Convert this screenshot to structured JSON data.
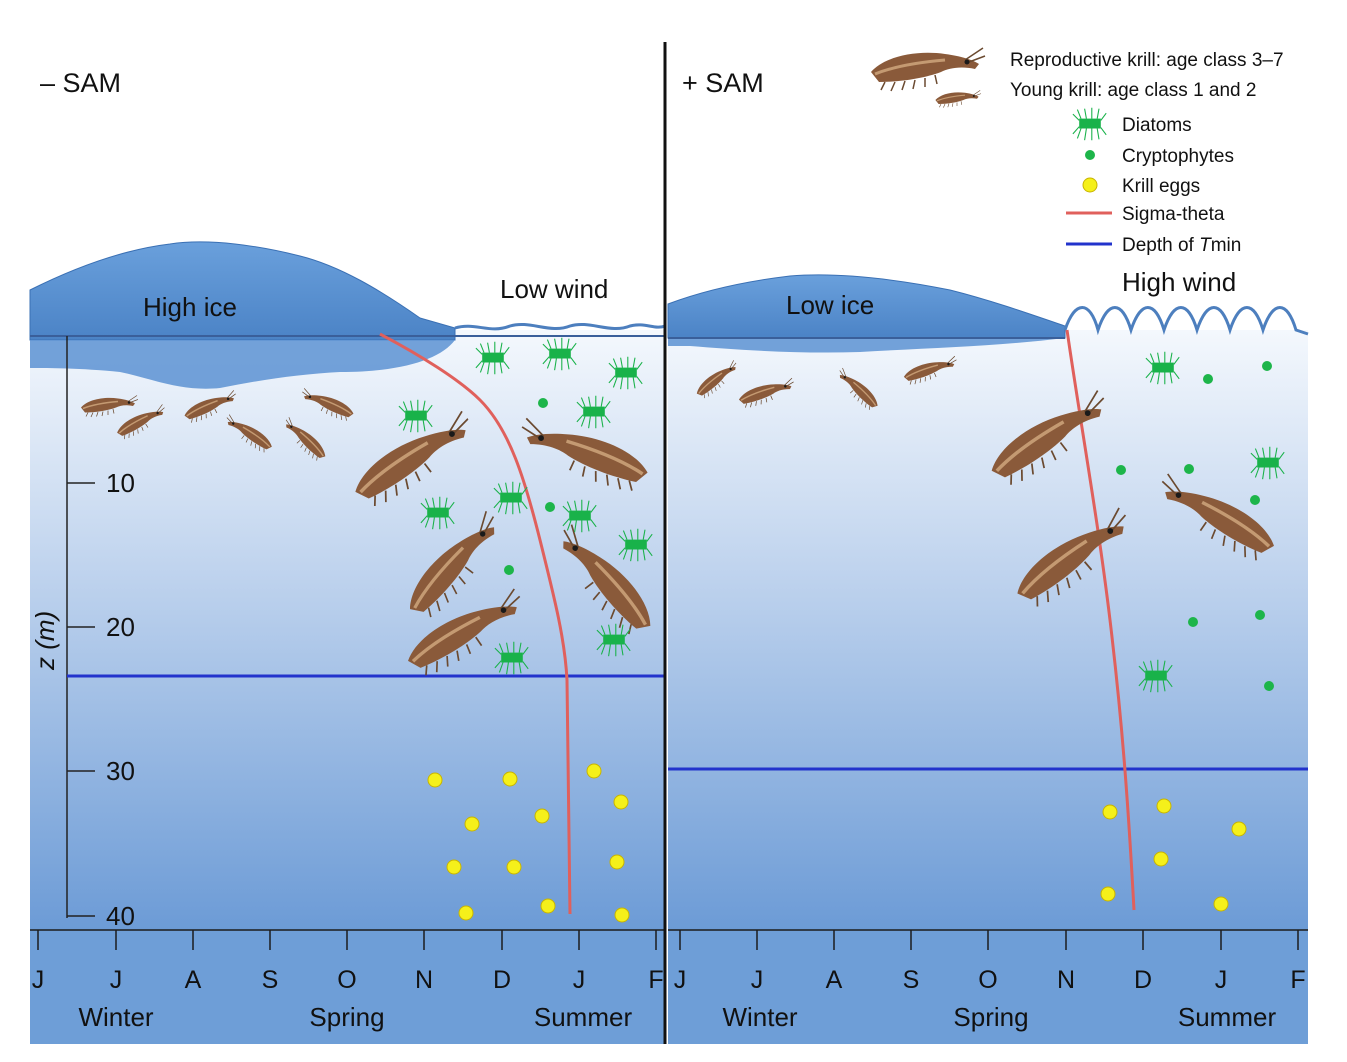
{
  "colors": {
    "water_top": "#f2f6fc",
    "water_mid": "#a9c3e6",
    "water_bottom": "#6c9bd6",
    "ice": "#5b93d3",
    "ice_edge": "#3a70b4",
    "sigma_theta": "#e0605c",
    "tmin": "#2233cc",
    "diatom": "#19b24a",
    "cryptophyte": "#1db54a",
    "egg": "#f5f01a",
    "krill": "#8a5a3a",
    "axis_band": "#6e9ed7"
  },
  "panels": [
    {
      "id": "neg-sam",
      "label": "– SAM",
      "ice_label": "High ice",
      "wind_label": "Low wind",
      "months": [
        "J",
        "J",
        "A",
        "S",
        "O",
        "N",
        "D",
        "J",
        "F"
      ],
      "seasons": [
        "Winter",
        "Spring",
        "Summer"
      ],
      "tmin_depth_m": 23.5
    },
    {
      "id": "pos-sam",
      "label": "+ SAM",
      "ice_label": "Low ice",
      "wind_label": "High wind",
      "months": [
        "J",
        "J",
        "A",
        "S",
        "O",
        "N",
        "D",
        "J",
        "F"
      ],
      "seasons": [
        "Winter",
        "Spring",
        "Summer"
      ],
      "tmin_depth_m": 30
    }
  ],
  "depth_axis": {
    "label": "z (m)",
    "ticks": [
      "10",
      "20",
      "30",
      "40"
    ]
  },
  "legend": {
    "reproductive_krill": "Reproductive krill: age class 3–7",
    "young_krill": "Young krill: age class 1 and 2",
    "diatoms": "Diatoms",
    "cryptophytes": "Cryptophytes",
    "krill_eggs": "Krill eggs",
    "sigma_theta": "Sigma-theta",
    "tmin_prefix": "Depth of ",
    "tmin_italic": "T",
    "tmin_suffix": "min"
  }
}
